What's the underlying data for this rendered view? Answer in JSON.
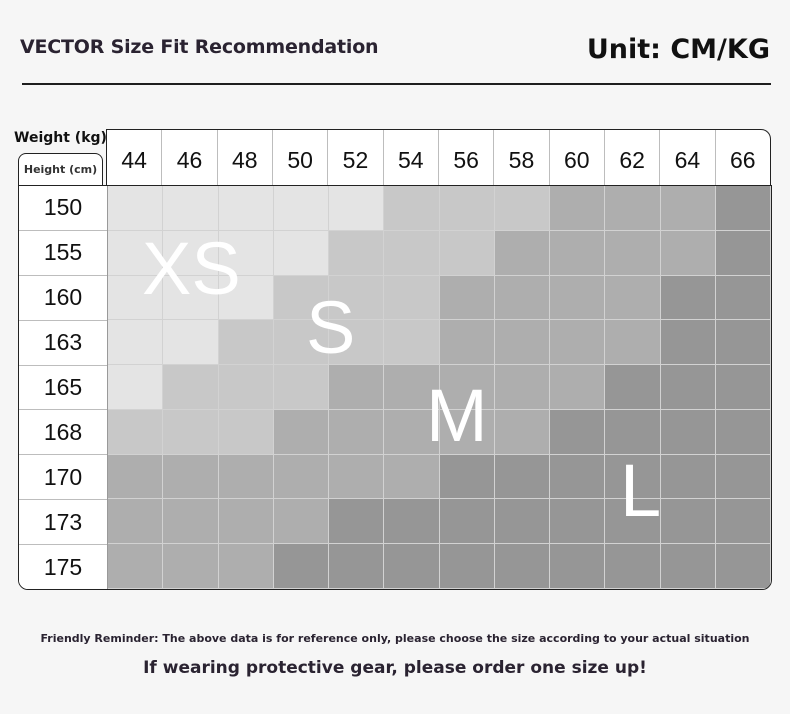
{
  "header": {
    "title": "VECTOR Size Fit Recommendation",
    "unit": "Unit: CM/KG"
  },
  "table": {
    "weight_axis_label": "Weight (kg)",
    "height_axis_label": "Height (cm)",
    "weights": [
      "44",
      "46",
      "48",
      "50",
      "52",
      "54",
      "56",
      "58",
      "60",
      "62",
      "64",
      "66"
    ],
    "heights": [
      "150",
      "155",
      "160",
      "163",
      "165",
      "168",
      "170",
      "173",
      "175"
    ],
    "size_labels": {
      "xs": "XS",
      "s": "S",
      "m": "M",
      "l": "L"
    },
    "grid": [
      [
        "XS",
        "XS",
        "XS",
        "XS",
        "XS",
        "S",
        "S",
        "S",
        "M",
        "M",
        "M",
        "L"
      ],
      [
        "XS",
        "XS",
        "XS",
        "XS",
        "S",
        "S",
        "S",
        "M",
        "M",
        "M",
        "M",
        "L"
      ],
      [
        "XS",
        "XS",
        "XS",
        "S",
        "S",
        "S",
        "M",
        "M",
        "M",
        "M",
        "L",
        "L"
      ],
      [
        "XS",
        "XS",
        "S",
        "S",
        "S",
        "S",
        "M",
        "M",
        "M",
        "M",
        "L",
        "L"
      ],
      [
        "XS",
        "S",
        "S",
        "S",
        "M",
        "M",
        "M",
        "M",
        "M",
        "L",
        "L",
        "L"
      ],
      [
        "S",
        "S",
        "S",
        "M",
        "M",
        "M",
        "M",
        "M",
        "L",
        "L",
        "L",
        "L"
      ],
      [
        "M",
        "M",
        "M",
        "M",
        "M",
        "M",
        "L",
        "L",
        "L",
        "L",
        "L",
        "L"
      ],
      [
        "M",
        "M",
        "M",
        "M",
        "L",
        "L",
        "L",
        "L",
        "L",
        "L",
        "L",
        "L"
      ],
      [
        "M",
        "M",
        "M",
        "L",
        "L",
        "L",
        "L",
        "L",
        "L",
        "L",
        "L",
        "L"
      ]
    ],
    "colors": {
      "XS": "#e4e4e4",
      "S": "#c8c8c8",
      "M": "#aeaeae",
      "L": "#969696"
    }
  },
  "footer": {
    "reminder": "Friendly Reminder: The above data is for reference only, please choose the size according to your actual situation",
    "advice": "If wearing protective gear, please order one size up!"
  }
}
